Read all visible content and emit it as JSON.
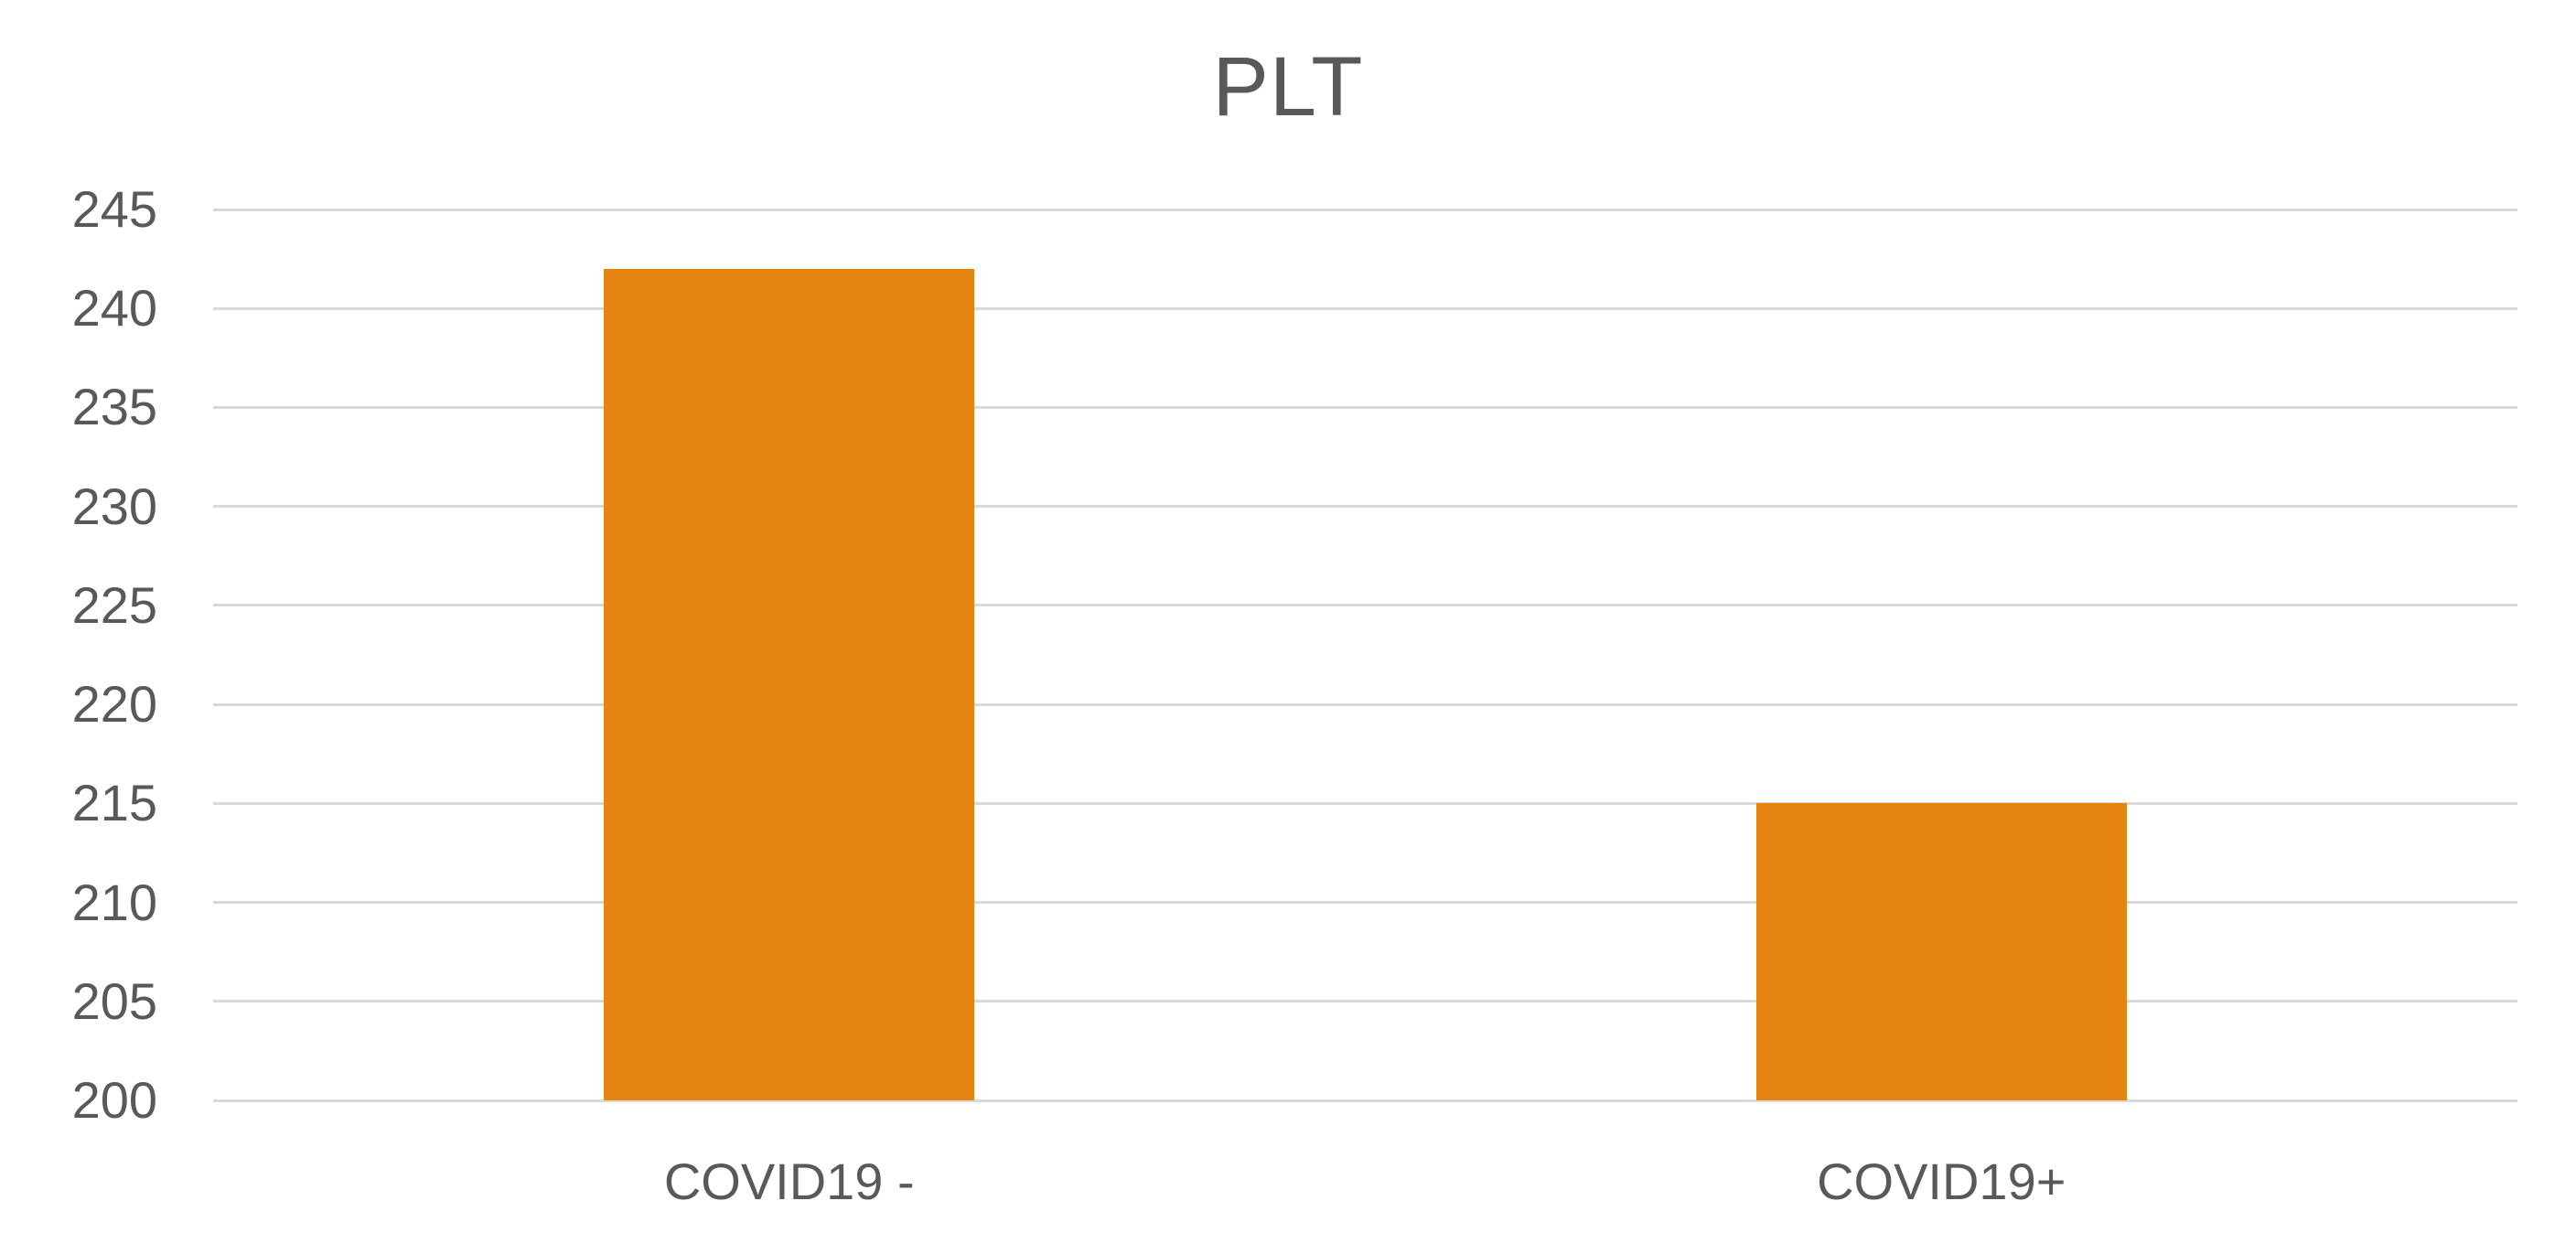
{
  "chart_data": {
    "type": "bar",
    "title": "PLT",
    "categories": [
      "COVID19 -",
      "COVID19+"
    ],
    "values": [
      242,
      215
    ],
    "series": [
      {
        "name": "PLT",
        "values": [
          242,
          215
        ]
      }
    ],
    "xlabel": "",
    "ylabel": "",
    "ylim": [
      200,
      245
    ],
    "yticks": [
      200,
      205,
      210,
      215,
      220,
      225,
      230,
      235,
      240,
      245
    ],
    "grid": true,
    "legend": false,
    "bar_color": "#E68412",
    "gridline_color": "#D9D9D9",
    "text_color": "#595959",
    "background_color": "#FFFFFF"
  }
}
